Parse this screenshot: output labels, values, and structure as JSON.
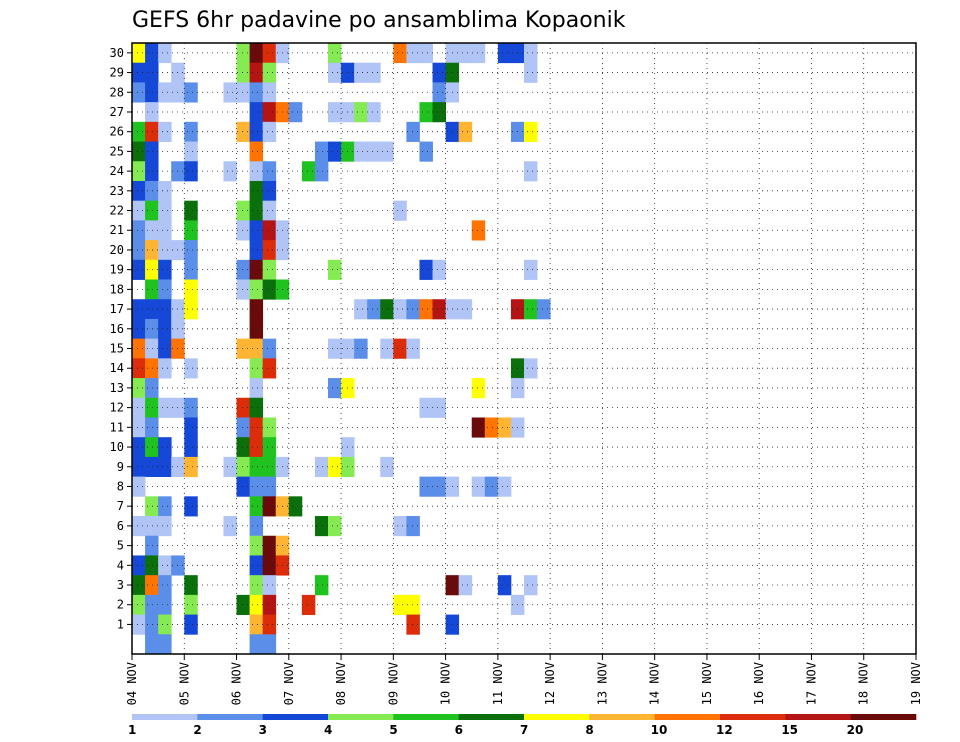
{
  "chart_data": {
    "type": "heatmap",
    "title": "GEFS 6hr padavine po ansamblima Kopaonik",
    "x_labels": [
      "04 NOV",
      "05 NOV",
      "06 NOV",
      "07 NOV",
      "08 NOV",
      "09 NOV",
      "10 NOV",
      "11 NOV",
      "12 NOV",
      "13 NOV",
      "14 NOV",
      "15 NOV",
      "16 NOV",
      "17 NOV",
      "18 NOV",
      "19 NOV"
    ],
    "y_labels": [
      "1",
      "2",
      "3",
      "4",
      "5",
      "6",
      "7",
      "8",
      "9",
      "10",
      "11",
      "12",
      "13",
      "14",
      "15",
      "16",
      "17",
      "18",
      "19",
      "20",
      "21",
      "22",
      "23",
      "24",
      "25",
      "26",
      "27",
      "28",
      "29",
      "30"
    ],
    "grid": true,
    "legend": {
      "placement": "bottom",
      "labels": [
        "1",
        "2",
        "3",
        "4",
        "5",
        "6",
        "7",
        "8",
        "10",
        "12",
        "15",
        "20"
      ],
      "colors": [
        "#b0c4f6",
        "#5b8ee8",
        "#1648d8",
        "#86ea52",
        "#1fc21f",
        "#0b700b",
        "#ffff00",
        "#ffb432",
        "#ff7300",
        "#dc2d0a",
        "#b41414",
        "#6b0a0a"
      ]
    },
    "cells": [
      [
        30,
        0,
        6
      ],
      [
        30,
        1,
        2
      ],
      [
        30,
        2,
        0
      ],
      [
        30,
        8,
        3
      ],
      [
        30,
        9,
        11
      ],
      [
        30,
        10,
        9
      ],
      [
        30,
        11,
        0
      ],
      [
        30,
        15,
        3
      ],
      [
        30,
        20,
        8
      ],
      [
        30,
        21,
        0
      ],
      [
        30,
        22,
        0
      ],
      [
        30,
        24,
        0
      ],
      [
        30,
        25,
        0
      ],
      [
        30,
        26,
        0
      ],
      [
        30,
        28,
        2
      ],
      [
        30,
        29,
        2
      ],
      [
        30,
        30,
        0
      ],
      [
        29,
        0,
        2
      ],
      [
        29,
        1,
        2
      ],
      [
        29,
        3,
        0
      ],
      [
        29,
        8,
        3
      ],
      [
        29,
        9,
        10
      ],
      [
        29,
        10,
        3
      ],
      [
        29,
        15,
        0
      ],
      [
        29,
        16,
        2
      ],
      [
        29,
        17,
        0
      ],
      [
        29,
        18,
        0
      ],
      [
        29,
        23,
        2
      ],
      [
        29,
        24,
        5
      ],
      [
        29,
        30,
        0
      ],
      [
        28,
        0,
        1
      ],
      [
        28,
        1,
        2
      ],
      [
        28,
        2,
        0
      ],
      [
        28,
        3,
        0
      ],
      [
        28,
        4,
        1
      ],
      [
        28,
        7,
        0
      ],
      [
        28,
        8,
        0
      ],
      [
        28,
        9,
        1
      ],
      [
        28,
        10,
        0
      ],
      [
        28,
        23,
        1
      ],
      [
        28,
        24,
        0
      ],
      [
        27,
        1,
        0
      ],
      [
        27,
        9,
        2
      ],
      [
        27,
        10,
        10
      ],
      [
        27,
        11,
        8
      ],
      [
        27,
        12,
        1
      ],
      [
        27,
        15,
        0
      ],
      [
        27,
        16,
        0
      ],
      [
        27,
        17,
        3
      ],
      [
        27,
        18,
        0
      ],
      [
        27,
        22,
        4
      ],
      [
        27,
        23,
        5
      ],
      [
        26,
        0,
        4
      ],
      [
        26,
        1,
        9
      ],
      [
        26,
        2,
        0
      ],
      [
        26,
        4,
        1
      ],
      [
        26,
        8,
        7
      ],
      [
        26,
        9,
        2
      ],
      [
        26,
        10,
        0
      ],
      [
        26,
        21,
        1
      ],
      [
        26,
        24,
        2
      ],
      [
        26,
        25,
        7
      ],
      [
        26,
        29,
        1
      ],
      [
        26,
        30,
        6
      ],
      [
        25,
        0,
        5
      ],
      [
        25,
        1,
        2
      ],
      [
        25,
        4,
        0
      ],
      [
        25,
        9,
        8
      ],
      [
        25,
        14,
        1
      ],
      [
        25,
        15,
        2
      ],
      [
        25,
        16,
        4
      ],
      [
        25,
        17,
        0
      ],
      [
        25,
        18,
        0
      ],
      [
        25,
        19,
        0
      ],
      [
        25,
        22,
        1
      ],
      [
        24,
        0,
        3
      ],
      [
        24,
        1,
        2
      ],
      [
        24,
        3,
        1
      ],
      [
        24,
        4,
        2
      ],
      [
        24,
        7,
        0
      ],
      [
        24,
        9,
        0
      ],
      [
        24,
        10,
        1
      ],
      [
        24,
        13,
        4
      ],
      [
        24,
        14,
        1
      ],
      [
        24,
        30,
        0
      ],
      [
        23,
        0,
        2
      ],
      [
        23,
        1,
        1
      ],
      [
        23,
        2,
        0
      ],
      [
        23,
        9,
        5
      ],
      [
        23,
        10,
        2
      ],
      [
        22,
        0,
        0
      ],
      [
        22,
        1,
        4
      ],
      [
        22,
        2,
        0
      ],
      [
        22,
        4,
        5
      ],
      [
        22,
        8,
        3
      ],
      [
        22,
        9,
        5
      ],
      [
        22,
        10,
        0
      ],
      [
        22,
        20,
        0
      ],
      [
        21,
        0,
        1
      ],
      [
        21,
        1,
        0
      ],
      [
        21,
        2,
        0
      ],
      [
        21,
        4,
        4
      ],
      [
        21,
        8,
        0
      ],
      [
        21,
        9,
        2
      ],
      [
        21,
        10,
        10
      ],
      [
        21,
        11,
        0
      ],
      [
        21,
        26,
        8
      ],
      [
        20,
        0,
        1
      ],
      [
        20,
        1,
        7
      ],
      [
        20,
        2,
        0
      ],
      [
        20,
        3,
        0
      ],
      [
        20,
        4,
        1
      ],
      [
        20,
        9,
        2
      ],
      [
        20,
        10,
        9
      ],
      [
        20,
        11,
        0
      ],
      [
        19,
        0,
        2
      ],
      [
        19,
        1,
        6
      ],
      [
        19,
        2,
        2
      ],
      [
        19,
        4,
        1
      ],
      [
        19,
        8,
        1
      ],
      [
        19,
        9,
        11
      ],
      [
        19,
        10,
        3
      ],
      [
        19,
        15,
        3
      ],
      [
        19,
        22,
        2
      ],
      [
        19,
        23,
        0
      ],
      [
        19,
        30,
        0
      ],
      [
        18,
        1,
        4
      ],
      [
        18,
        2,
        1
      ],
      [
        18,
        4,
        6
      ],
      [
        18,
        8,
        0
      ],
      [
        18,
        9,
        3
      ],
      [
        18,
        10,
        5
      ],
      [
        18,
        11,
        4
      ],
      [
        17,
        0,
        2
      ],
      [
        17,
        1,
        2
      ],
      [
        17,
        2,
        2
      ],
      [
        17,
        3,
        0
      ],
      [
        17,
        4,
        6
      ],
      [
        17,
        9,
        11
      ],
      [
        17,
        17,
        0
      ],
      [
        17,
        18,
        1
      ],
      [
        17,
        19,
        5
      ],
      [
        17,
        20,
        0
      ],
      [
        17,
        21,
        1
      ],
      [
        17,
        22,
        8
      ],
      [
        17,
        23,
        10
      ],
      [
        17,
        24,
        0
      ],
      [
        17,
        25,
        0
      ],
      [
        17,
        29,
        10
      ],
      [
        17,
        30,
        4
      ],
      [
        17,
        31,
        1
      ],
      [
        16,
        0,
        2
      ],
      [
        16,
        1,
        1
      ],
      [
        16,
        2,
        2
      ],
      [
        16,
        3,
        0
      ],
      [
        16,
        9,
        11
      ],
      [
        15,
        0,
        8
      ],
      [
        15,
        1,
        0
      ],
      [
        15,
        2,
        2
      ],
      [
        15,
        3,
        8
      ],
      [
        15,
        8,
        7
      ],
      [
        15,
        9,
        7
      ],
      [
        15,
        10,
        1
      ],
      [
        15,
        15,
        0
      ],
      [
        15,
        16,
        0
      ],
      [
        15,
        17,
        1
      ],
      [
        15,
        19,
        0
      ],
      [
        15,
        20,
        9
      ],
      [
        15,
        21,
        0
      ],
      [
        14,
        0,
        9
      ],
      [
        14,
        1,
        8
      ],
      [
        14,
        2,
        0
      ],
      [
        14,
        4,
        0
      ],
      [
        14,
        9,
        3
      ],
      [
        14,
        10,
        9
      ],
      [
        14,
        29,
        5
      ],
      [
        14,
        30,
        0
      ],
      [
        13,
        0,
        3
      ],
      [
        13,
        1,
        1
      ],
      [
        13,
        9,
        0
      ],
      [
        13,
        15,
        1
      ],
      [
        13,
        16,
        6
      ],
      [
        13,
        26,
        6
      ],
      [
        13,
        29,
        0
      ],
      [
        12,
        0,
        0
      ],
      [
        12,
        1,
        4
      ],
      [
        12,
        2,
        0
      ],
      [
        12,
        3,
        0
      ],
      [
        12,
        4,
        1
      ],
      [
        12,
        8,
        9
      ],
      [
        12,
        9,
        5
      ],
      [
        12,
        22,
        0
      ],
      [
        12,
        23,
        0
      ],
      [
        11,
        0,
        0
      ],
      [
        11,
        1,
        1
      ],
      [
        11,
        4,
        2
      ],
      [
        11,
        8,
        1
      ],
      [
        11,
        9,
        9
      ],
      [
        11,
        10,
        3
      ],
      [
        11,
        26,
        11
      ],
      [
        11,
        27,
        8
      ],
      [
        11,
        28,
        7
      ],
      [
        11,
        29,
        0
      ],
      [
        10,
        0,
        2
      ],
      [
        10,
        1,
        4
      ],
      [
        10,
        2,
        2
      ],
      [
        10,
        4,
        2
      ],
      [
        10,
        8,
        5
      ],
      [
        10,
        9,
        9
      ],
      [
        10,
        10,
        4
      ],
      [
        10,
        16,
        0
      ],
      [
        9,
        0,
        2
      ],
      [
        9,
        1,
        2
      ],
      [
        9,
        2,
        2
      ],
      [
        9,
        3,
        0
      ],
      [
        9,
        4,
        7
      ],
      [
        9,
        7,
        0
      ],
      [
        9,
        8,
        3
      ],
      [
        9,
        9,
        4
      ],
      [
        9,
        10,
        4
      ],
      [
        9,
        11,
        0
      ],
      [
        9,
        14,
        0
      ],
      [
        9,
        15,
        6
      ],
      [
        9,
        16,
        3
      ],
      [
        9,
        19,
        0
      ],
      [
        8,
        0,
        0
      ],
      [
        8,
        8,
        2
      ],
      [
        8,
        9,
        1
      ],
      [
        8,
        10,
        1
      ],
      [
        8,
        22,
        1
      ],
      [
        8,
        23,
        1
      ],
      [
        8,
        24,
        0
      ],
      [
        8,
        26,
        0
      ],
      [
        8,
        27,
        1
      ],
      [
        8,
        28,
        0
      ],
      [
        7,
        1,
        3
      ],
      [
        7,
        2,
        1
      ],
      [
        7,
        4,
        2
      ],
      [
        7,
        9,
        4
      ],
      [
        7,
        10,
        11
      ],
      [
        7,
        11,
        7
      ],
      [
        7,
        12,
        5
      ],
      [
        6,
        0,
        0
      ],
      [
        6,
        1,
        0
      ],
      [
        6,
        2,
        0
      ],
      [
        6,
        7,
        0
      ],
      [
        6,
        9,
        1
      ],
      [
        6,
        14,
        5
      ],
      [
        6,
        15,
        3
      ],
      [
        6,
        20,
        0
      ],
      [
        6,
        21,
        1
      ],
      [
        5,
        1,
        1
      ],
      [
        5,
        9,
        3
      ],
      [
        5,
        10,
        11
      ],
      [
        5,
        11,
        7
      ],
      [
        4,
        0,
        2
      ],
      [
        4,
        1,
        5
      ],
      [
        4,
        2,
        0
      ],
      [
        4,
        3,
        1
      ],
      [
        4,
        9,
        2
      ],
      [
        4,
        10,
        11
      ],
      [
        4,
        11,
        9
      ],
      [
        3,
        0,
        5
      ],
      [
        3,
        1,
        8
      ],
      [
        3,
        2,
        1
      ],
      [
        3,
        4,
        5
      ],
      [
        3,
        9,
        3
      ],
      [
        3,
        10,
        0
      ],
      [
        3,
        14,
        4
      ],
      [
        3,
        24,
        11
      ],
      [
        3,
        25,
        0
      ],
      [
        3,
        28,
        2
      ],
      [
        3,
        30,
        0
      ],
      [
        2,
        0,
        3
      ],
      [
        2,
        1,
        1
      ],
      [
        2,
        2,
        1
      ],
      [
        2,
        4,
        3
      ],
      [
        2,
        8,
        5
      ],
      [
        2,
        9,
        6
      ],
      [
        2,
        10,
        10
      ],
      [
        2,
        13,
        9
      ],
      [
        2,
        20,
        6
      ],
      [
        2,
        21,
        6
      ],
      [
        2,
        29,
        0
      ],
      [
        1,
        0,
        0
      ],
      [
        1,
        1,
        1
      ],
      [
        1,
        2,
        3
      ],
      [
        1,
        4,
        2
      ],
      [
        1,
        9,
        7
      ],
      [
        1,
        10,
        9
      ],
      [
        1,
        21,
        9
      ],
      [
        1,
        24,
        2
      ],
      [
        0,
        1,
        1
      ],
      [
        0,
        2,
        1
      ],
      [
        0,
        9,
        1
      ],
      [
        0,
        10,
        1
      ]
    ]
  }
}
